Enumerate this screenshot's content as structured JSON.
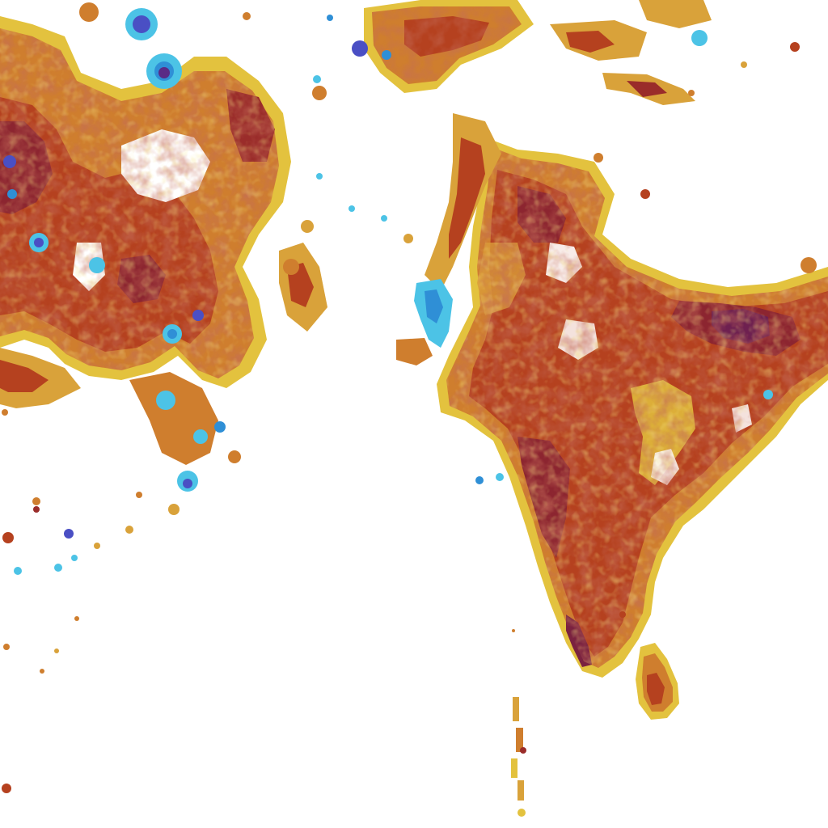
{
  "map": {
    "kind": "raster-choropleth",
    "background": "#ffffff",
    "color_ramp": [
      "#4cc3e6",
      "#2f8fd6",
      "#4a4fc4",
      "#5a2a86",
      "#e8c83a",
      "#d9a23a",
      "#c8782c",
      "#b8431f",
      "#9a2c2a",
      "#6e2050"
    ],
    "regions_shown": [
      "arabian-peninsula",
      "persian-gulf-coast",
      "indian-subcontinent",
      "sri-lanka",
      "maldives",
      "horn-of-africa-coast"
    ],
    "legend": null,
    "title": ""
  }
}
